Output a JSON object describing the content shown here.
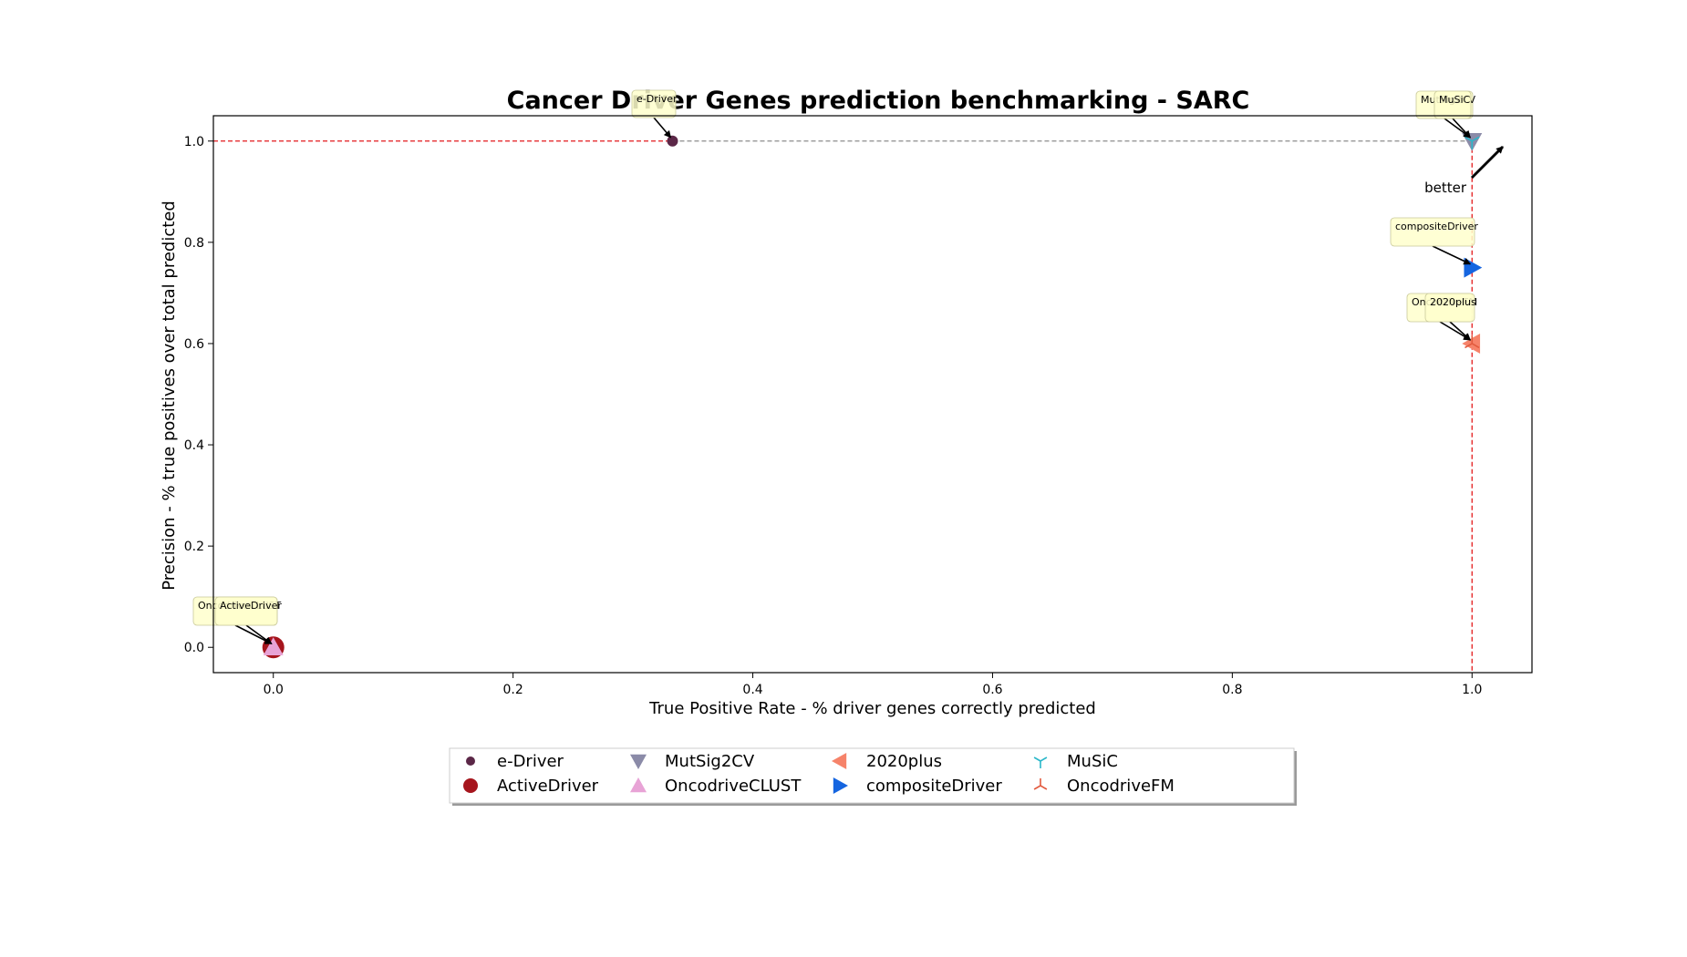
{
  "chart_data": {
    "type": "scatter",
    "title": "Cancer Driver Genes prediction benchmarking - SARC",
    "xlabel": "True Positive Rate - % driver genes correctly predicted",
    "ylabel": "Precision - % true positives over total predicted",
    "xlim": [
      -0.05,
      1.05
    ],
    "ylim": [
      -0.05,
      1.05
    ],
    "xticks": [
      "0.0",
      "0.2",
      "0.4",
      "0.6",
      "0.8",
      "1.0"
    ],
    "yticks": [
      "0.0",
      "0.2",
      "0.4",
      "0.6",
      "0.8",
      "1.0"
    ],
    "grid": false,
    "legend_position": "bottom-center",
    "better_label": "better",
    "series": [
      {
        "name": "e-Driver",
        "x": 0.333,
        "y": 1.0,
        "marker": "circle-small",
        "color": "#5b2747"
      },
      {
        "name": "ActiveDriver",
        "x": 0.0,
        "y": 0.0,
        "marker": "circle",
        "color": "#a6151d"
      },
      {
        "name": "MutSig2CV",
        "x": 1.0,
        "y": 1.0,
        "marker": "triangle-down",
        "color": "#8b8ba8"
      },
      {
        "name": "OncodriveCLUST",
        "x": 0.0,
        "y": 0.0,
        "marker": "triangle-up",
        "color": "#e8a3d6"
      },
      {
        "name": "2020plus",
        "x": 1.0,
        "y": 0.6,
        "marker": "triangle-left",
        "color": "#f6836a"
      },
      {
        "name": "compositeDriver",
        "x": 1.0,
        "y": 0.75,
        "marker": "triangle-right",
        "color": "#1565e0"
      },
      {
        "name": "MuSiC",
        "x": 1.0,
        "y": 1.0,
        "marker": "tri-down",
        "color": "#2ab7c9"
      },
      {
        "name": "OncodriveFM",
        "x": 1.0,
        "y": 0.6,
        "marker": "tri-up",
        "color": "#e25a3e"
      }
    ],
    "reference_lines": [
      {
        "orientation": "horizontal",
        "value": 1.0,
        "color": "#e41a1c",
        "style": "dashed"
      },
      {
        "orientation": "vertical",
        "value": 1.0,
        "color": "#e41a1c",
        "style": "dashed"
      }
    ]
  }
}
